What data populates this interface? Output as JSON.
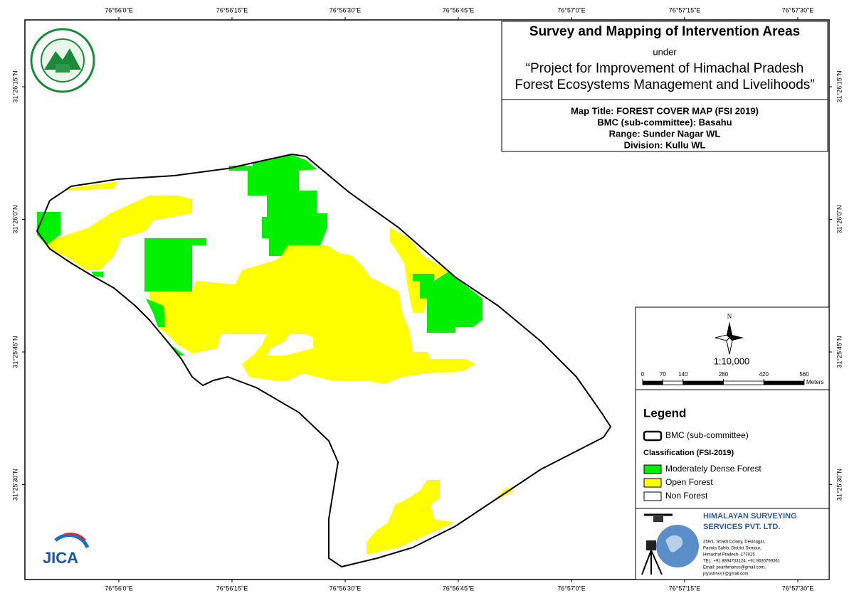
{
  "graticule": {
    "lon_labels": [
      "76°56'0\"E",
      "76°56'15\"E",
      "76°56'30\"E",
      "76°56'45\"E",
      "76°57'0\"E",
      "76°57'15\"E",
      "76°57'30\"E"
    ],
    "lat_labels": [
      "31°26'15\"N",
      "31°26'0\"N",
      "31°25'45\"N",
      "31°25'30\"N"
    ]
  },
  "title_block": {
    "title": "Survey and Mapping of Intervention Areas",
    "subtitle": "under",
    "project_line1": "“Project for Improvement of Himachal Pradesh",
    "project_line2": "Forest Ecosystems Management and Livelihoods”"
  },
  "map_info": {
    "map_title": "Map Title: FOREST COVER MAP (FSI 2019)",
    "bmc": "BMC (sub-committee): Basahu",
    "range": "Range: Sunder Nagar WL",
    "division": "Division: Kullu WL"
  },
  "north_arrow": "N",
  "scale": {
    "ratio": "1:10,000",
    "ticks": [
      0,
      70,
      140,
      280,
      420,
      560
    ],
    "unit": "Meters"
  },
  "legend": {
    "title": "Legend",
    "boundary": "BMC (sub-committee)",
    "classification_title": "Classification (FSI-2019)",
    "classes": [
      {
        "label": "Moderately Dense Forest",
        "color": "#00f000"
      },
      {
        "label": "Open Forest",
        "color": "#ffff00"
      },
      {
        "label": "Non Forest",
        "color": "#ffffff"
      }
    ]
  },
  "company": {
    "name_line1": "HIMALAYAN SURVEYING",
    "name_line2": "SERVICES PVT. LTD.",
    "address": [
      "259/1, Shakti Colony, Devinagar,",
      "Paonta Sahib, District Sirmour,",
      "Himachal Pradesh- 173025",
      "TEL: +91 8894733124, +91 8630799361",
      "Email: pearlhmahss@gmail.com,",
      "piyushhss7@gmail.com"
    ]
  },
  "logo": {
    "jica": "JICA"
  }
}
